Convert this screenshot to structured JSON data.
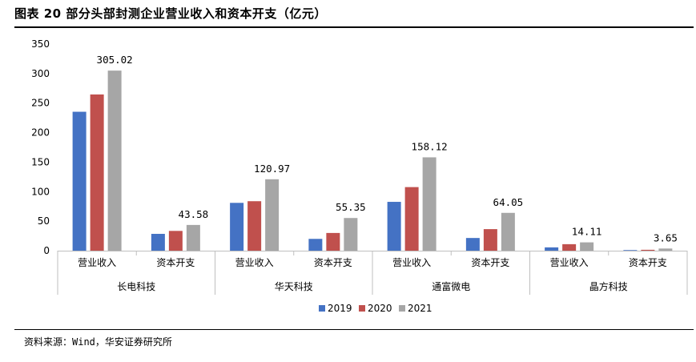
{
  "title": "图表 20 部分头部封测企业营业收入和资本开支（亿元）",
  "source": "资料来源：Wind，华安证券研究所",
  "chart_data": {
    "type": "bar",
    "groups": [
      {
        "company": "长电科技",
        "categories": [
          "营业收入",
          "资本开支"
        ]
      },
      {
        "company": "华天科技",
        "categories": [
          "营业收入",
          "资本开支"
        ]
      },
      {
        "company": "通富微电",
        "categories": [
          "营业收入",
          "资本开支"
        ]
      },
      {
        "company": "晶方科技",
        "categories": [
          "营业收入",
          "资本开支"
        ]
      }
    ],
    "series": [
      {
        "name": "2019",
        "color": "#4472C4",
        "values": [
          235.3,
          28.5,
          81.0,
          20.0,
          82.7,
          21.5,
          5.6,
          1.0
        ]
      },
      {
        "name": "2020",
        "color": "#C0504D",
        "values": [
          264.6,
          33.5,
          83.8,
          30.0,
          107.7,
          36.5,
          11.0,
          1.5
        ]
      },
      {
        "name": "2021",
        "color": "#A6A6A6",
        "values": [
          305.02,
          43.58,
          120.97,
          55.35,
          158.12,
          64.05,
          14.11,
          3.65
        ]
      }
    ],
    "data_labels": [
      "305.02",
      "43.58",
      "120.97",
      "55.35",
      "158.12",
      "64.05",
      "14.11",
      "3.65"
    ],
    "y_ticks": [
      "0",
      "50",
      "100",
      "150",
      "200",
      "250",
      "300",
      "350"
    ],
    "ylim": [
      0,
      350
    ],
    "legend_position": "bottom-center",
    "grid": false
  }
}
